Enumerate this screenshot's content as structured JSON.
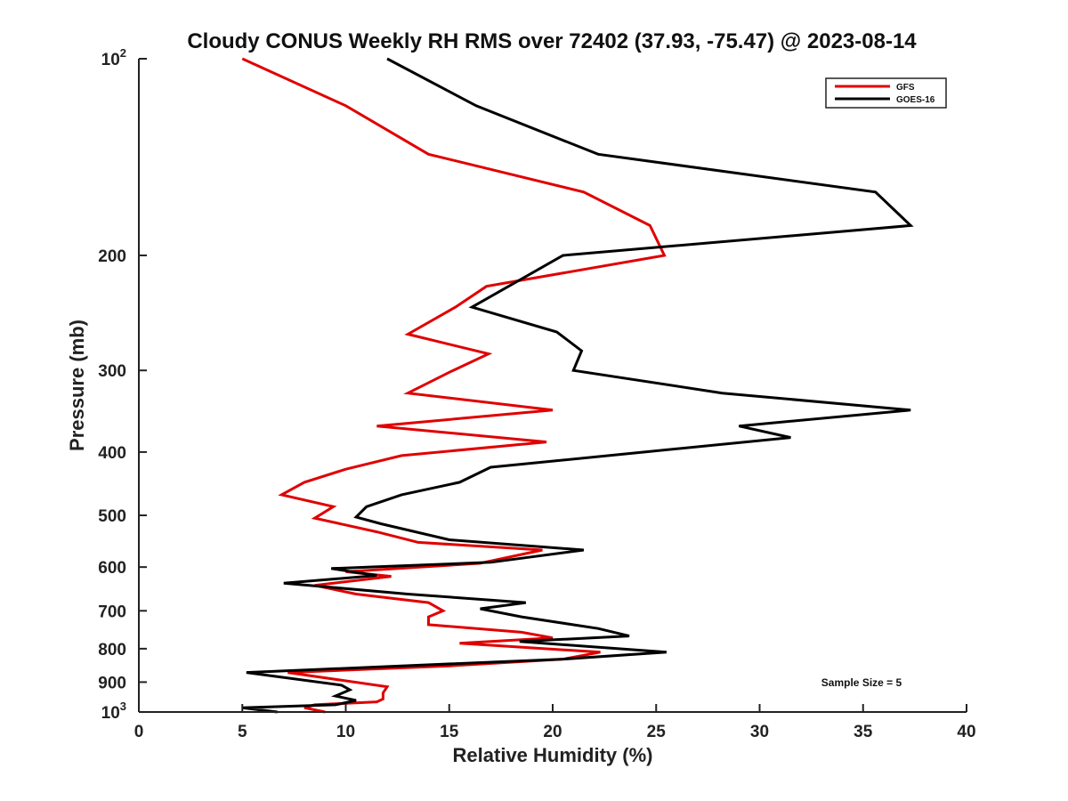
{
  "chart_data": {
    "type": "line",
    "title": "Cloudy CONUS Weekly RH RMS over 72402 (37.93, -75.47) @ 2023-08-14",
    "xlabel": "Relative Humidity (%)",
    "ylabel": "Pressure (mb)",
    "xlim": [
      0,
      40
    ],
    "ylim": [
      1000,
      100
    ],
    "y_scale": "log",
    "y_reversed": true,
    "x_ticks": [
      "0",
      "5",
      "10",
      "15",
      "20",
      "25",
      "30",
      "35",
      "40"
    ],
    "y_ticks": [
      {
        "value": 100,
        "label": "10",
        "sup": "2"
      },
      {
        "value": 200,
        "label": "200",
        "sup": ""
      },
      {
        "value": 300,
        "label": "300",
        "sup": ""
      },
      {
        "value": 400,
        "label": "400",
        "sup": ""
      },
      {
        "value": 500,
        "label": "500",
        "sup": ""
      },
      {
        "value": 600,
        "label": "600",
        "sup": ""
      },
      {
        "value": 700,
        "label": "700",
        "sup": ""
      },
      {
        "value": 800,
        "label": "800",
        "sup": ""
      },
      {
        "value": 900,
        "label": "900",
        "sup": ""
      },
      {
        "value": 1000,
        "label": "10",
        "sup": "3"
      }
    ],
    "legend_position": "top-right",
    "grid": false,
    "annotation": "Sample Size = 5",
    "series": [
      {
        "name": "GFS",
        "color": "#e00000",
        "points": [
          [
            5.0,
            100
          ],
          [
            10.0,
            118
          ],
          [
            14.0,
            140
          ],
          [
            21.5,
            160
          ],
          [
            24.7,
            180
          ],
          [
            25.4,
            200
          ],
          [
            16.8,
            223
          ],
          [
            15.3,
            240
          ],
          [
            13.0,
            264
          ],
          [
            16.9,
            283
          ],
          [
            15.0,
            302
          ],
          [
            13.0,
            325
          ],
          [
            20.0,
            345
          ],
          [
            11.5,
            365
          ],
          [
            19.7,
            386
          ],
          [
            12.7,
            405
          ],
          [
            10.0,
            425
          ],
          [
            8.0,
            445
          ],
          [
            6.9,
            465
          ],
          [
            9.4,
            485
          ],
          [
            8.5,
            505
          ],
          [
            11.5,
            530
          ],
          [
            13.5,
            550
          ],
          [
            19.5,
            565
          ],
          [
            16.5,
            592
          ],
          [
            10.0,
            610
          ],
          [
            12.2,
            620
          ],
          [
            8.5,
            640
          ],
          [
            10.5,
            660
          ],
          [
            14.0,
            680
          ],
          [
            14.7,
            700
          ],
          [
            14.0,
            715
          ],
          [
            14.0,
            735
          ],
          [
            18.5,
            755
          ],
          [
            20.0,
            770
          ],
          [
            15.5,
            785
          ],
          [
            22.3,
            810
          ],
          [
            20.5,
            830
          ],
          [
            15.0,
            850
          ],
          [
            7.2,
            870
          ],
          [
            12.0,
            915
          ],
          [
            11.8,
            935
          ],
          [
            11.8,
            955
          ],
          [
            11.5,
            965
          ],
          [
            8.5,
            975
          ],
          [
            8.0,
            985
          ],
          [
            9.0,
            1000
          ]
        ]
      },
      {
        "name": "GOES-16",
        "color": "#000000",
        "points": [
          [
            12.0,
            100
          ],
          [
            16.3,
            118
          ],
          [
            22.2,
            140
          ],
          [
            35.6,
            160
          ],
          [
            37.3,
            180
          ],
          [
            20.5,
            200
          ],
          [
            16.1,
            240
          ],
          [
            20.2,
            262
          ],
          [
            21.4,
            280
          ],
          [
            21.0,
            300
          ],
          [
            28.2,
            325
          ],
          [
            37.3,
            345
          ],
          [
            29.0,
            365
          ],
          [
            31.5,
            380
          ],
          [
            17.0,
            422
          ],
          [
            15.5,
            445
          ],
          [
            12.7,
            465
          ],
          [
            11.0,
            485
          ],
          [
            10.5,
            503
          ],
          [
            11.7,
            515
          ],
          [
            15.0,
            545
          ],
          [
            21.5,
            565
          ],
          [
            17.0,
            590
          ],
          [
            9.3,
            603
          ],
          [
            11.5,
            618
          ],
          [
            7.0,
            635
          ],
          [
            13.0,
            660
          ],
          [
            18.7,
            680
          ],
          [
            16.5,
            695
          ],
          [
            18.5,
            715
          ],
          [
            22.2,
            745
          ],
          [
            23.7,
            765
          ],
          [
            18.4,
            780
          ],
          [
            25.5,
            810
          ],
          [
            20.5,
            830
          ],
          [
            5.2,
            870
          ],
          [
            9.8,
            910
          ],
          [
            10.2,
            925
          ],
          [
            9.5,
            945
          ],
          [
            10.5,
            960
          ],
          [
            9.5,
            975
          ],
          [
            5.0,
            985
          ],
          [
            6.7,
            1000
          ]
        ]
      }
    ]
  }
}
